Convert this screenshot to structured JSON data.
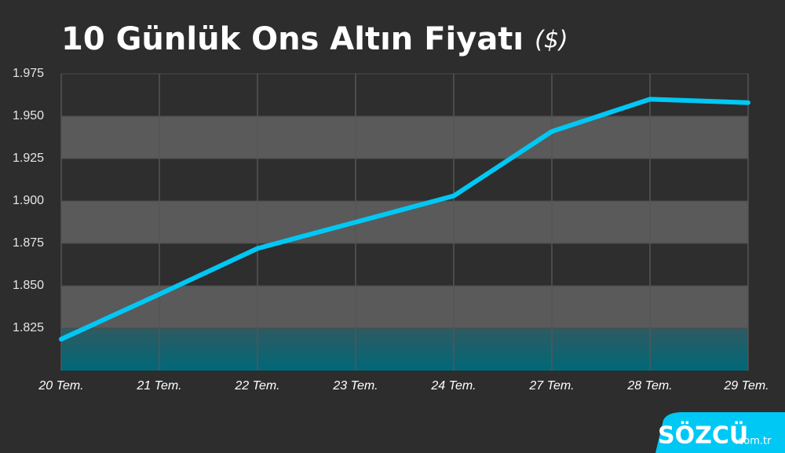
{
  "chart_data": {
    "type": "line",
    "title": "10 Günlük Ons Altın Fiyatı",
    "subtitle": "($)",
    "categories": [
      "20 Tem.",
      "21 Tem.",
      "22 Tem.",
      "23 Tem.",
      "24 Tem.",
      "27 Tem.",
      "28 Tem.",
      "29 Tem."
    ],
    "series": [
      {
        "name": "Ons Altın",
        "color": "#00c8f5",
        "values": [
          1818.5,
          1845,
          1872,
          1887.5,
          1903,
          1941,
          1960,
          1958
        ]
      }
    ],
    "ylim": [
      1800,
      1975
    ],
    "yticks": [
      {
        "value": 1825,
        "label": "1.825"
      },
      {
        "value": 1850,
        "label": "1.850"
      },
      {
        "value": 1875,
        "label": "1.875"
      },
      {
        "value": 1900,
        "label": "1.900"
      },
      {
        "value": 1925,
        "label": "1.925"
      },
      {
        "value": 1950,
        "label": "1.950"
      },
      {
        "value": 1975,
        "label": "1.975"
      }
    ],
    "grid": true
  },
  "brand": {
    "name": "SÖZCÜ",
    "domain": ".com.tr"
  }
}
